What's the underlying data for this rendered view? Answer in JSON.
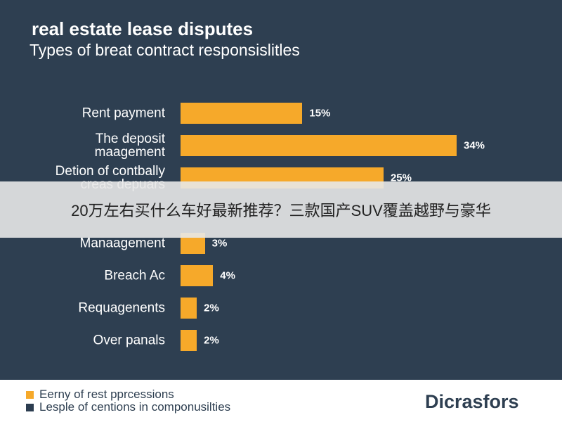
{
  "chart_data": {
    "type": "bar",
    "orientation": "horizontal",
    "title": "real estate lease disputes",
    "subtitle": "Types of breat contract responsislitles",
    "categories": [
      "Rent payment",
      "The deposit maagement",
      "Detion of contbally creas depuars",
      null,
      "Manaagement",
      "Breach Ac",
      "Requagenents",
      "Over panals"
    ],
    "values": [
      15,
      34,
      25,
      null,
      3,
      4,
      2,
      2
    ],
    "value_labels": [
      "15%",
      "34%",
      "25%",
      null,
      "3%",
      "4%",
      "2%",
      "2%"
    ],
    "color": "#f6a92a",
    "legend": [
      {
        "label": "Eerny of rest pprcessions",
        "color": "#f6a92a"
      },
      {
        "label": "Lesple of centions in componusilties",
        "color": "#2c3d50"
      }
    ],
    "brand": "Dicrasfors"
  },
  "overlay": {
    "text": "20万左右买什么车好最新推荐？三款国产SUV覆盖越野与豪华"
  }
}
